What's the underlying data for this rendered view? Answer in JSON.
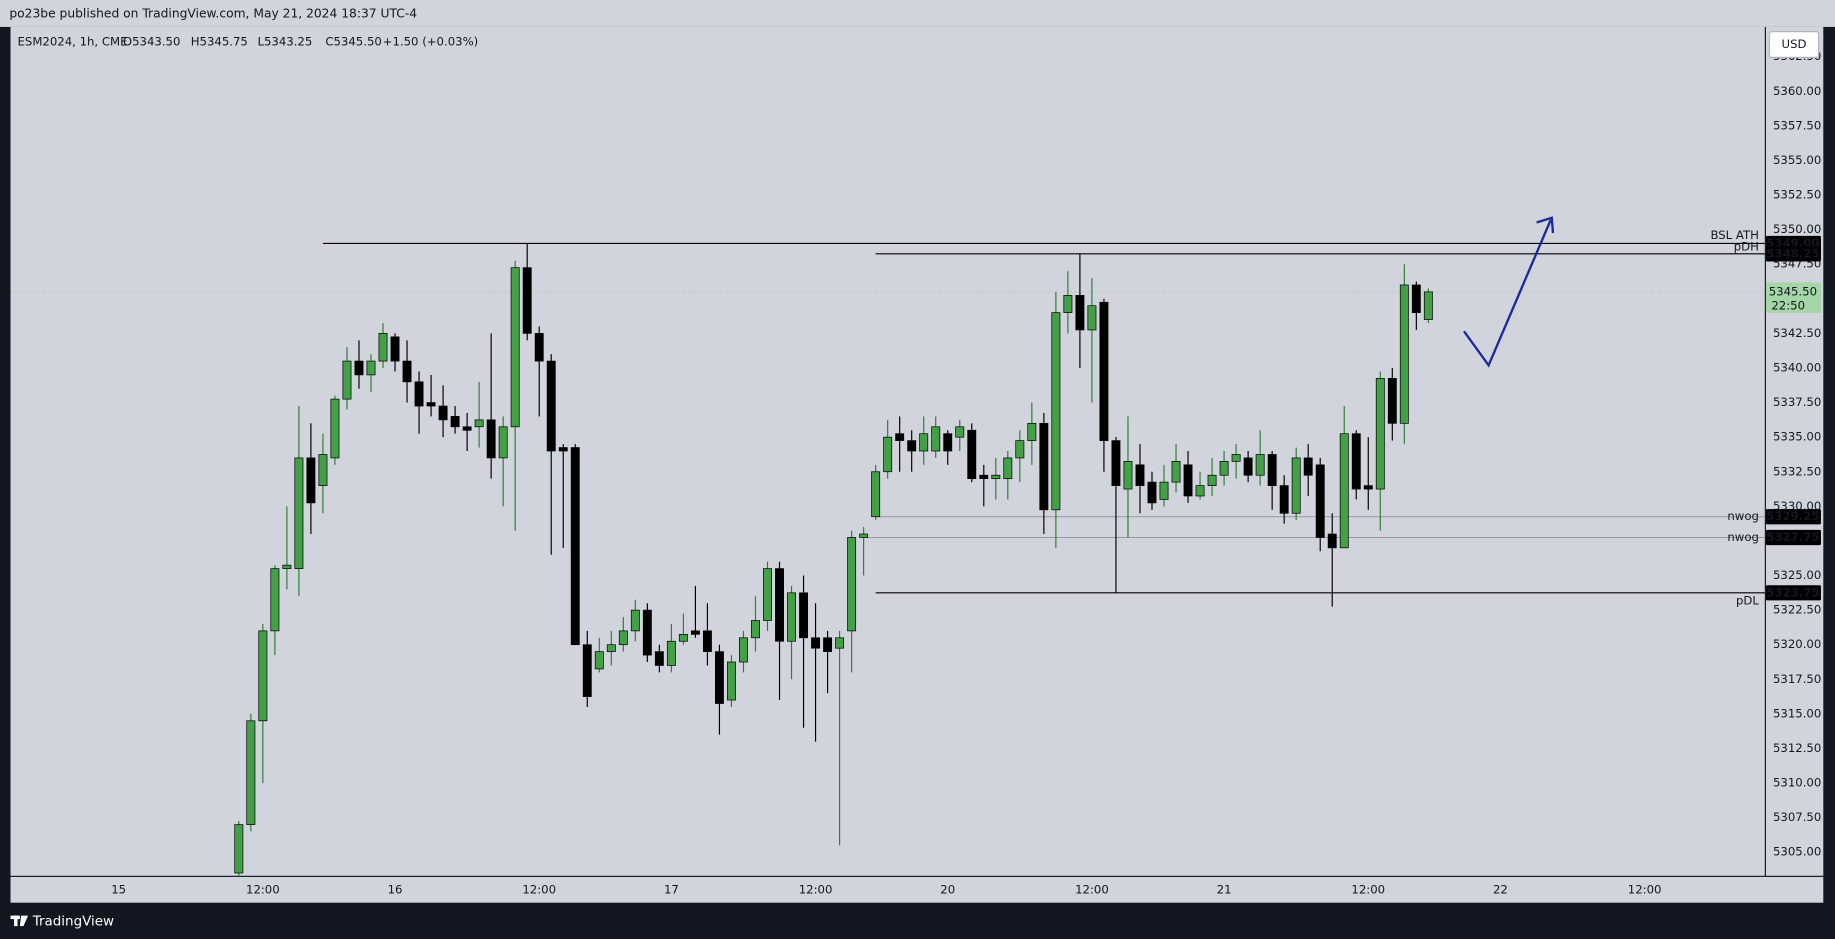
{
  "header": {
    "publisher": "po23be published on TradingView.com, May 21, 2024 18:37 UTC-4"
  },
  "footer": {
    "brand": "TradingView"
  },
  "chart_data": {
    "type": "candlestick",
    "symbol": "ESM2024, 1h, CME",
    "legend_values": [
      "O5343.50",
      "H5345.75",
      "L5343.25",
      "C5345.50",
      "+1.50 (+0.03%)"
    ],
    "currency": "USD",
    "up_color": "#43a047",
    "down_color": "#000000",
    "grid": false,
    "x": [
      10,
      11,
      12,
      13,
      14,
      15,
      16,
      17,
      18,
      19,
      20,
      21,
      22,
      23,
      24,
      25,
      26,
      27,
      28,
      29,
      30,
      31,
      32,
      33,
      34,
      35,
      36,
      37,
      38,
      39,
      40,
      41,
      42,
      43,
      44,
      45,
      46,
      47,
      48,
      49,
      50,
      51,
      52,
      53,
      54,
      55,
      56,
      57,
      58,
      59,
      60,
      61,
      62,
      63,
      64,
      65,
      66,
      67,
      68,
      69,
      70,
      71,
      72,
      73,
      74,
      75,
      76,
      77,
      78,
      79,
      80,
      81,
      82,
      83,
      84,
      85,
      86,
      87,
      88,
      89,
      90,
      91,
      92,
      93,
      94,
      95,
      96,
      97,
      98,
      99,
      100,
      101,
      102,
      103,
      104,
      105,
      106,
      107,
      108,
      109
    ],
    "open": [
      5303.5,
      5307,
      5314.5,
      5321,
      5325.5,
      5325.5,
      5333.5,
      5331.5,
      5333.5,
      5337.75,
      5340.5,
      5339.5,
      5340.5,
      5342.25,
      5340.5,
      5339,
      5337.5,
      5337.25,
      5336.5,
      5335.75,
      5335.75,
      5336.25,
      5333.5,
      5335.75,
      5347.25,
      5342.5,
      5340.5,
      5334.25,
      5334.25,
      5320,
      5318.25,
      5319.5,
      5320,
      5321,
      5322.5,
      5319.5,
      5318.5,
      5320.25,
      5321,
      5321,
      5319.5,
      5316,
      5318.75,
      5320.5,
      5321.75,
      5325.5,
      5320.25,
      5323.75,
      5320.5,
      5320.5,
      5319.75,
      5321,
      5327.75,
      5329.25,
      5332.5,
      5335.25,
      5334.75,
      5334,
      5334,
      5335.25,
      5335,
      5335.5,
      5332.25,
      5332,
      5332,
      5333.5,
      5334.75,
      5336,
      5329.75,
      5344,
      5345.25,
      5342.75,
      5344.75,
      5334.75,
      5331.25,
      5333,
      5331.75,
      5330.5,
      5331.75,
      5333,
      5330.75,
      5331.5,
      5332.25,
      5333.25,
      5333.5,
      5332.25,
      5333.75,
      5331.5,
      5329.5,
      5333.5,
      5333,
      5328,
      5327,
      5335.25,
      5331.5,
      5331.25,
      5339.25,
      5336,
      5346,
      5343.5
    ],
    "high": [
      5307.25,
      5315,
      5321.5,
      5325.75,
      5330,
      5337.25,
      5336,
      5335.25,
      5338,
      5341.5,
      5342,
      5341,
      5343.25,
      5342.5,
      5342,
      5339.75,
      5339.5,
      5338.75,
      5337.25,
      5336.75,
      5339,
      5342.5,
      5336.5,
      5347.75,
      5349,
      5343,
      5341,
      5334.5,
      5334.5,
      5321,
      5320.5,
      5321,
      5322,
      5323.25,
      5323,
      5320,
      5321.5,
      5322.25,
      5324.25,
      5323,
      5320,
      5319.25,
      5321,
      5323.5,
      5326,
      5326,
      5324.25,
      5325,
      5323,
      5321,
      5321,
      5328.25,
      5328.5,
      5333,
      5336.25,
      5336.5,
      5335.5,
      5336.5,
      5336.5,
      5335.5,
      5336.25,
      5336,
      5333,
      5333.5,
      5334,
      5335.5,
      5337.5,
      5336.75,
      5345.5,
      5347,
      5348.25,
      5346.5,
      5345,
      5335,
      5336.5,
      5334.5,
      5332.5,
      5333,
      5334.5,
      5334,
      5332.5,
      5333.5,
      5334,
      5334.5,
      5334,
      5335.5,
      5334,
      5332.25,
      5334.25,
      5334.5,
      5333.5,
      5329.5,
      5337.25,
      5335.5,
      5335,
      5339.75,
      5340,
      5347.5,
      5346.25,
      5345.75
    ],
    "low": [
      5303.25,
      5306.5,
      5310,
      5319.25,
      5324,
      5323.5,
      5328,
      5329.5,
      5333,
      5337,
      5338.5,
      5338.25,
      5340,
      5339.75,
      5337.5,
      5335.25,
      5336.5,
      5335,
      5335.25,
      5334,
      5334.25,
      5332,
      5330,
      5328.25,
      5342,
      5336.5,
      5326.5,
      5327,
      5320,
      5315.5,
      5318,
      5318.5,
      5319.5,
      5320.25,
      5318.75,
      5318,
      5318,
      5320,
      5320.5,
      5318.5,
      5313.5,
      5315.5,
      5318,
      5319.5,
      5321,
      5316,
      5317.5,
      5314,
      5313,
      5316.5,
      5305.5,
      5318,
      5325,
      5329,
      5332,
      5332.5,
      5332.5,
      5333,
      5333.5,
      5333,
      5334,
      5331.75,
      5330,
      5330.5,
      5330.5,
      5331.75,
      5333,
      5328,
      5327,
      5342.5,
      5340,
      5337.5,
      5332.5,
      5323.75,
      5327.75,
      5329.5,
      5329.75,
      5330,
      5331,
      5330.25,
      5330.5,
      5330.75,
      5331.5,
      5332,
      5331.75,
      5331.5,
      5329.75,
      5328.75,
      5329,
      5330.75,
      5326.75,
      5322.75,
      5327,
      5330.5,
      5329.75,
      5328.25,
      5334.75,
      5334.5,
      5342.75,
      5343.25
    ],
    "close": [
      5307,
      5314.5,
      5321,
      5325.5,
      5325.75,
      5333.5,
      5330.25,
      5333.75,
      5337.75,
      5340.5,
      5339.5,
      5340.5,
      5342.5,
      5340.5,
      5339,
      5337.25,
      5337.25,
      5336.25,
      5335.75,
      5335.5,
      5336.25,
      5333.5,
      5335.75,
      5347.25,
      5342.5,
      5340.5,
      5334,
      5334,
      5320,
      5316.25,
      5319.5,
      5320,
      5321,
      5322.5,
      5319.25,
      5318.5,
      5320.25,
      5320.75,
      5320.75,
      5319.5,
      5315.75,
      5318.75,
      5320.5,
      5321.75,
      5325.5,
      5320.25,
      5323.75,
      5320.5,
      5319.75,
      5319.5,
      5320.5,
      5327.75,
      5328,
      5332.5,
      5335,
      5334.75,
      5334,
      5335.25,
      5335.75,
      5334,
      5335.75,
      5332,
      5332,
      5332.25,
      5333.5,
      5334.75,
      5336,
      5329.75,
      5344,
      5345.25,
      5342.75,
      5344.5,
      5334.75,
      5331.5,
      5333.25,
      5331.5,
      5330.25,
      5331.75,
      5333.25,
      5330.75,
      5331.5,
      5332.25,
      5333.25,
      5333.75,
      5332.25,
      5333.75,
      5331.5,
      5329.5,
      5333.5,
      5332.25,
      5327.75,
      5327,
      5335.25,
      5331.25,
      5331.25,
      5339.25,
      5336,
      5346,
      5344,
      5345.5
    ],
    "xlim": [
      -9,
      137
    ],
    "xticks": [
      {
        "value": 0,
        "label": "15"
      },
      {
        "value": 12,
        "label": "12:00"
      },
      {
        "value": 23,
        "label": "16"
      },
      {
        "value": 35,
        "label": "12:00"
      },
      {
        "value": 46,
        "label": "17"
      },
      {
        "value": 58,
        "label": "12:00"
      },
      {
        "value": 69,
        "label": "20"
      },
      {
        "value": 81,
        "label": "12:00"
      },
      {
        "value": 92,
        "label": "21"
      },
      {
        "value": 104,
        "label": "12:00"
      },
      {
        "value": 115,
        "label": "22"
      },
      {
        "value": 127,
        "label": "12:00"
      }
    ],
    "ylim": [
      5303.3,
      5364.65
    ],
    "yticks": [
      {
        "value": 5305,
        "label": "5305.00"
      },
      {
        "value": 5307.5,
        "label": "5307.50"
      },
      {
        "value": 5310,
        "label": "5310.00"
      },
      {
        "value": 5312.5,
        "label": "5312.50"
      },
      {
        "value": 5315,
        "label": "5315.00"
      },
      {
        "value": 5317.5,
        "label": "5317.50"
      },
      {
        "value": 5320,
        "label": "5320.00"
      },
      {
        "value": 5322.5,
        "label": "5322.50"
      },
      {
        "value": 5325,
        "label": "5325.00"
      },
      {
        "value": 5327.5,
        "label": "5327.50"
      },
      {
        "value": 5330,
        "label": "5330.00"
      },
      {
        "value": 5332.5,
        "label": "5332.50"
      },
      {
        "value": 5335,
        "label": "5335.00"
      },
      {
        "value": 5337.5,
        "label": "5337.50"
      },
      {
        "value": 5340,
        "label": "5340.00"
      },
      {
        "value": 5342.5,
        "label": "5342.50"
      },
      {
        "value": 5345,
        "label": "5345.00"
      },
      {
        "value": 5347.5,
        "label": "5347.50"
      },
      {
        "value": 5350,
        "label": "5350.00"
      },
      {
        "value": 5352.5,
        "label": "5352.50"
      },
      {
        "value": 5355,
        "label": "5355.00"
      },
      {
        "value": 5357.5,
        "label": "5357.50"
      },
      {
        "value": 5360,
        "label": "5360.00"
      },
      {
        "value": 5362.5,
        "label": "5362.50"
      }
    ],
    "levels": [
      {
        "label": "BSL ATH",
        "value": 5349,
        "value_label": "5349.00",
        "x_start": 17,
        "color": "#000000"
      },
      {
        "label": "pDH",
        "value": 5348.25,
        "value_label": "5348.25",
        "x_start": 63,
        "color": "#000000"
      },
      {
        "label": "nwog",
        "value": 5329.25,
        "value_label": "5329.25",
        "x_start": 63,
        "color": "#9598a1"
      },
      {
        "label": "nwog",
        "value": 5327.75,
        "value_label": "5327.75",
        "x_start": 62,
        "color": "#9598a1"
      },
      {
        "label": "pDL",
        "value": 5323.75,
        "value_label": "5323.75",
        "x_start": 63,
        "color": "#000000"
      }
    ],
    "last_price": {
      "value": 5345.5,
      "label": "5345.50",
      "countdown": "22:50",
      "color": "#a5d6a7"
    }
  }
}
